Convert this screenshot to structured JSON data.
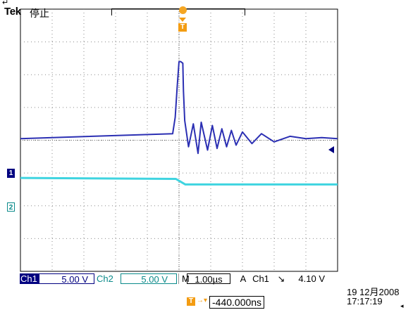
{
  "header": {
    "brand": "Tek",
    "status": "停止",
    "corner_glyph": "↵"
  },
  "trigger": {
    "marker_label": "T",
    "level": "4.10 V",
    "source": "Ch1",
    "slope_glyph": "↘"
  },
  "channels": [
    {
      "id": "ch1",
      "label": "1",
      "tag": "Ch1",
      "scale": "5.00 V",
      "color": "#2b2fb3"
    },
    {
      "id": "ch2",
      "label": "2",
      "tag": "Ch2",
      "scale": "5.00 V",
      "color": "#3fd4e0"
    }
  ],
  "timebase": {
    "mode": "M",
    "scale": "1.00µs",
    "acq_mode": "A",
    "position_arrow": "→▾",
    "position": "-440.000ns"
  },
  "clock": {
    "date": "19 12月2008",
    "time": "17:17:19",
    "menu_glyph": "◂"
  },
  "chart_data": {
    "type": "line",
    "divisions": {
      "x": 10,
      "y": 8
    },
    "x_unit": "µs",
    "x_range": [
      -5,
      5
    ],
    "y_unit": "div",
    "y_range": [
      -4,
      4
    ],
    "grid": true,
    "series": [
      {
        "x": [
          -5,
          -0.2,
          -0.12,
          -0.06,
          0,
          0.05,
          0.12,
          0.14,
          0.18,
          0.3,
          0.45,
          0.6,
          0.7,
          0.9,
          1.05,
          1.2,
          1.35,
          1.5,
          1.65,
          1.8,
          2.0,
          2.3,
          2.6,
          3.0,
          3.5,
          4.0,
          4.5,
          5.0
        ],
        "y": [
          0.05,
          0.2,
          0.7,
          1.6,
          2.4,
          2.4,
          2.35,
          1.5,
          0.6,
          -0.2,
          0.5,
          -0.4,
          0.55,
          -0.3,
          0.45,
          -0.25,
          0.35,
          -0.2,
          0.3,
          -0.15,
          0.25,
          -0.1,
          0.2,
          -0.05,
          0.12,
          0.05,
          0.08,
          0.05
        ]
      },
      {
        "x": [
          -5,
          -0.1,
          0.2,
          5
        ],
        "y": [
          -1.15,
          -1.18,
          -1.35,
          -1.35
        ]
      }
    ]
  }
}
